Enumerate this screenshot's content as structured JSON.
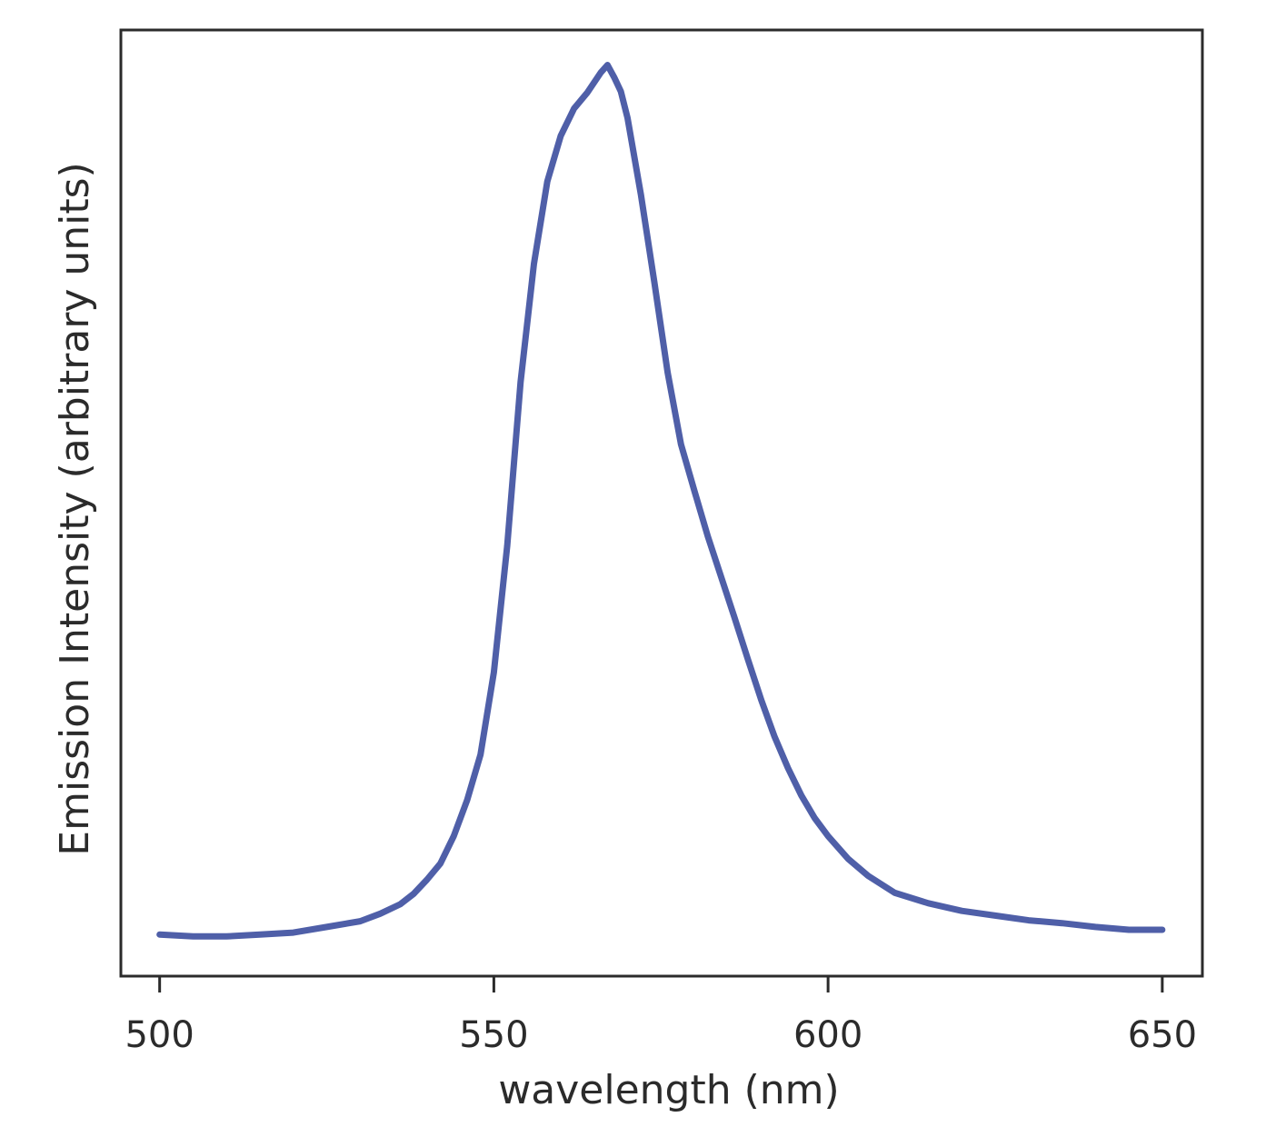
{
  "chart_data": {
    "type": "line",
    "xlabel": "wavelength (nm)",
    "ylabel": "Emission Intensity (arbitrary units)",
    "x": [
      500,
      505,
      510,
      515,
      520,
      525,
      530,
      533,
      536,
      538,
      540,
      542,
      544,
      546,
      548,
      550,
      552,
      554,
      556,
      558,
      560,
      562,
      564,
      566,
      567,
      568,
      569,
      570,
      572,
      574,
      576,
      578,
      580,
      582,
      584,
      586,
      588,
      590,
      592,
      594,
      596,
      598,
      600,
      603,
      606,
      610,
      615,
      620,
      625,
      630,
      635,
      640,
      645,
      650
    ],
    "series": [
      {
        "color": "#4f5fa8",
        "values": [
          0.044,
          0.042,
          0.042,
          0.044,
          0.046,
          0.052,
          0.058,
          0.066,
          0.076,
          0.087,
          0.102,
          0.119,
          0.148,
          0.186,
          0.234,
          0.321,
          0.455,
          0.628,
          0.753,
          0.84,
          0.888,
          0.917,
          0.934,
          0.955,
          0.963,
          0.95,
          0.935,
          0.907,
          0.826,
          0.734,
          0.638,
          0.562,
          0.513,
          0.465,
          0.422,
          0.379,
          0.335,
          0.292,
          0.253,
          0.22,
          0.191,
          0.167,
          0.148,
          0.124,
          0.106,
          0.088,
          0.077,
          0.069,
          0.064,
          0.059,
          0.056,
          0.052,
          0.049,
          0.049
        ]
      }
    ],
    "xlim": [
      494.2,
      656
    ],
    "ylim": [
      0,
      1
    ],
    "xticks": [
      500,
      550,
      600,
      650
    ]
  }
}
